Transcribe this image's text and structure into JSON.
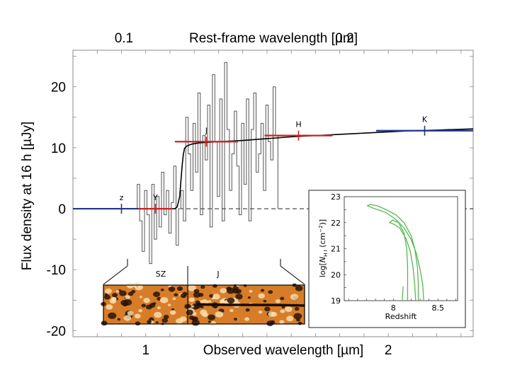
{
  "chart_data": [
    {
      "type": "line",
      "title": "",
      "xlabel": "Observed wavelength [µm]",
      "ylabel": "Flux density at 16 h [µJy]",
      "top_xlabel": "Rest-frame wavelength [µm]",
      "xlim": [
        0.7,
        2.35
      ],
      "ylim": [
        -21,
        26
      ],
      "x_ticks": [
        {
          "value": 1,
          "label": "1"
        },
        {
          "value": 2,
          "label": "2"
        }
      ],
      "top_ticks": [
        {
          "value": 0.1,
          "label": "0.1",
          "obs": 0.91
        },
        {
          "value": 0.2,
          "label": "0.2",
          "obs": 1.82
        }
      ],
      "y_ticks": [
        {
          "value": 20,
          "label": "20"
        },
        {
          "value": 10,
          "label": "10"
        },
        {
          "value": 0,
          "label": "0"
        },
        {
          "value": -10,
          "label": "-10"
        },
        {
          "value": -20,
          "label": "-20"
        }
      ],
      "reference_line": {
        "y": 0,
        "style": "dashed"
      },
      "series": [
        {
          "kind": "spectrum",
          "color": "#555555",
          "x": [
            0.97,
            0.98,
            0.99,
            1.0,
            1.01,
            1.02,
            1.03,
            1.04,
            1.05,
            1.06,
            1.07,
            1.08,
            1.09,
            1.1,
            1.11,
            1.12,
            1.13,
            1.14,
            1.15,
            1.16,
            1.17,
            1.18,
            1.19,
            1.2,
            1.21,
            1.22,
            1.23,
            1.24,
            1.25,
            1.26,
            1.27,
            1.28,
            1.29,
            1.3,
            1.31,
            1.32,
            1.33,
            1.34,
            1.35,
            1.36,
            1.37,
            1.38,
            1.39,
            1.4,
            1.41,
            1.42,
            1.43,
            1.44,
            1.45,
            1.46,
            1.47,
            1.48,
            1.49,
            1.5,
            1.51,
            1.52,
            1.53,
            1.54
          ],
          "y": [
            4,
            -2,
            -7,
            3,
            -1,
            -9,
            4,
            -5,
            2,
            -3,
            6,
            -1,
            3,
            -4,
            1,
            7,
            -6,
            0,
            3,
            -2,
            15,
            9,
            3,
            14,
            6,
            19,
            -1,
            12,
            8,
            17,
            -3,
            22,
            11,
            2,
            18,
            -2,
            24,
            13,
            3,
            9,
            16,
            7,
            -1,
            14,
            4,
            18,
            -2,
            13,
            19,
            6,
            9,
            14,
            3,
            17,
            11,
            8,
            20,
            12
          ]
        },
        {
          "kind": "model",
          "color": "#000000",
          "x": [
            0.7,
            1.12,
            1.13,
            1.14,
            1.145,
            1.15,
            1.155,
            1.16,
            1.17,
            1.19,
            1.22,
            1.3,
            1.4,
            1.5,
            1.6,
            1.7,
            1.8,
            1.9,
            2.0,
            2.1,
            2.2,
            2.35
          ],
          "y": [
            0,
            0,
            0.3,
            2,
            4.5,
            7,
            8.9,
            9.9,
            10.3,
            10.6,
            10.8,
            11.0,
            11.2,
            11.5,
            11.8,
            12.0,
            12.2,
            12.4,
            12.6,
            12.8,
            12.9,
            13.1
          ]
        },
        {
          "kind": "photometry",
          "points": [
            {
              "label": "z",
              "x": 0.9,
              "y": 0,
              "x_err": 0.2,
              "y_err": 0,
              "color": "#22368c"
            },
            {
              "label": "Y",
              "x": 1.04,
              "y": 0,
              "x_err": 0.07,
              "y_err": 0.6,
              "color": "#cc2222"
            },
            {
              "label": "J",
              "x": 1.25,
              "y": 11,
              "x_err": 0.13,
              "y_err": 0.8,
              "color": "#cc2222"
            },
            {
              "label": "H",
              "x": 1.63,
              "y": 12,
              "x_err": 0.14,
              "y_err": 0.6,
              "color": "#cc2222"
            },
            {
              "label": "K",
              "x": 2.15,
              "y": 12.8,
              "x_err": 0.2,
              "y_err": 0.8,
              "color": "#22368c"
            }
          ]
        }
      ],
      "image_strip": {
        "labels": [
          "SZ",
          "J"
        ]
      }
    },
    {
      "type": "line",
      "title": "",
      "xlabel": "Redshift",
      "ylabel": "log[N_H I (cm^-2)]",
      "ylabel_parts": {
        "pre": "log[",
        "sym": "N",
        "sub": "H I",
        "post": " (cm",
        "sup": "−2",
        "end": ")]"
      },
      "xlim": [
        7.45,
        8.72
      ],
      "ylim": [
        19,
        23
      ],
      "x_ticks": [
        {
          "value": 8,
          "label": "8"
        },
        {
          "value": 8.5,
          "label": "8.5"
        }
      ],
      "y_ticks": [
        {
          "value": 23,
          "label": "23"
        },
        {
          "value": 22,
          "label": "22"
        },
        {
          "value": 21,
          "label": "21"
        },
        {
          "value": 20,
          "label": "20"
        },
        {
          "value": 19,
          "label": "19"
        }
      ],
      "series": [
        {
          "kind": "contour-outer",
          "color": "#55b855",
          "x": [
            8.34,
            8.33,
            8.3,
            8.26,
            8.2,
            8.12,
            8.02,
            7.91,
            7.78,
            7.71,
            7.74,
            7.82,
            7.92,
            8.03,
            8.12,
            8.2,
            8.24,
            8.27,
            8.28,
            8.28
          ],
          "y": [
            19,
            19.6,
            20.2,
            20.8,
            21.35,
            21.8,
            22.15,
            22.4,
            22.55,
            22.65,
            22.7,
            22.65,
            22.5,
            22.3,
            22.0,
            21.5,
            21.0,
            20.3,
            19.6,
            19
          ]
        },
        {
          "kind": "contour-inner",
          "color": "#55b855",
          "x": [
            8.25,
            8.24,
            8.22,
            8.19,
            8.14,
            8.07,
            8.0,
            7.96,
            7.99,
            8.06,
            8.12,
            8.15,
            8.16,
            8.16
          ],
          "y": [
            19,
            19.6,
            20.3,
            20.9,
            21.4,
            21.8,
            21.95,
            22.0,
            22.1,
            22.0,
            21.6,
            21.0,
            20.3,
            19
          ]
        },
        {
          "kind": "contour-tick",
          "color": "#55b855",
          "x": [
            8.1,
            8.11
          ],
          "y": [
            19,
            19.55
          ]
        }
      ]
    }
  ]
}
